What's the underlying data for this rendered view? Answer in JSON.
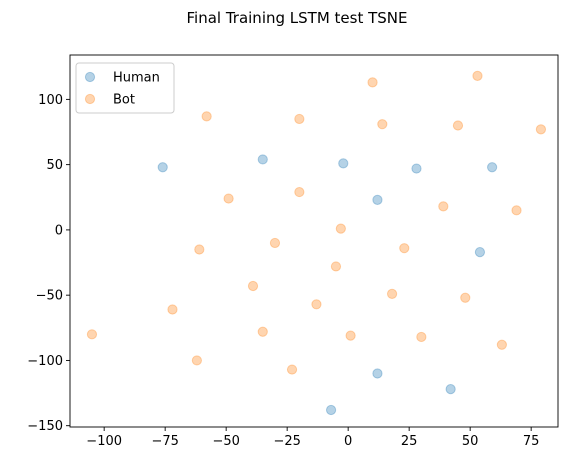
{
  "chart_data": {
    "type": "scatter",
    "title": "Final Training LSTM test TSNE",
    "xlabel": "",
    "ylabel": "",
    "xlim": [
      -114,
      86
    ],
    "ylim": [
      -151,
      134
    ],
    "grid": false,
    "legend_position": "top-left",
    "x_ticks": [
      -100,
      -75,
      -50,
      -25,
      0,
      25,
      50,
      75
    ],
    "y_ticks": [
      -150,
      -100,
      -50,
      0,
      50,
      100
    ],
    "series": [
      {
        "name": "Human",
        "color": "#1f77b4",
        "points": [
          {
            "x": -76,
            "y": 48
          },
          {
            "x": -35,
            "y": 54
          },
          {
            "x": -2,
            "y": 51
          },
          {
            "x": 12,
            "y": 23
          },
          {
            "x": 28,
            "y": 47
          },
          {
            "x": 59,
            "y": 48
          },
          {
            "x": 54,
            "y": -17
          },
          {
            "x": 12,
            "y": -110
          },
          {
            "x": 42,
            "y": -122
          },
          {
            "x": -7,
            "y": -138
          }
        ]
      },
      {
        "name": "Bot",
        "color": "#ff7f0e",
        "points": [
          {
            "x": -58,
            "y": 87
          },
          {
            "x": -20,
            "y": 85
          },
          {
            "x": 10,
            "y": 113
          },
          {
            "x": 14,
            "y": 81
          },
          {
            "x": 53,
            "y": 118
          },
          {
            "x": 45,
            "y": 80
          },
          {
            "x": 79,
            "y": 77
          },
          {
            "x": -49,
            "y": 24
          },
          {
            "x": -20,
            "y": 29
          },
          {
            "x": 39,
            "y": 18
          },
          {
            "x": 69,
            "y": 15
          },
          {
            "x": -61,
            "y": -15
          },
          {
            "x": -30,
            "y": -10
          },
          {
            "x": -3,
            "y": 1
          },
          {
            "x": 23,
            "y": -14
          },
          {
            "x": -5,
            "y": -28
          },
          {
            "x": -39,
            "y": -43
          },
          {
            "x": -13,
            "y": -57
          },
          {
            "x": 18,
            "y": -49
          },
          {
            "x": 48,
            "y": -52
          },
          {
            "x": -72,
            "y": -61
          },
          {
            "x": -105,
            "y": -80
          },
          {
            "x": -35,
            "y": -78
          },
          {
            "x": 1,
            "y": -81
          },
          {
            "x": 30,
            "y": -82
          },
          {
            "x": 63,
            "y": -88
          },
          {
            "x": -62,
            "y": -100
          },
          {
            "x": -23,
            "y": -107
          }
        ]
      }
    ]
  }
}
